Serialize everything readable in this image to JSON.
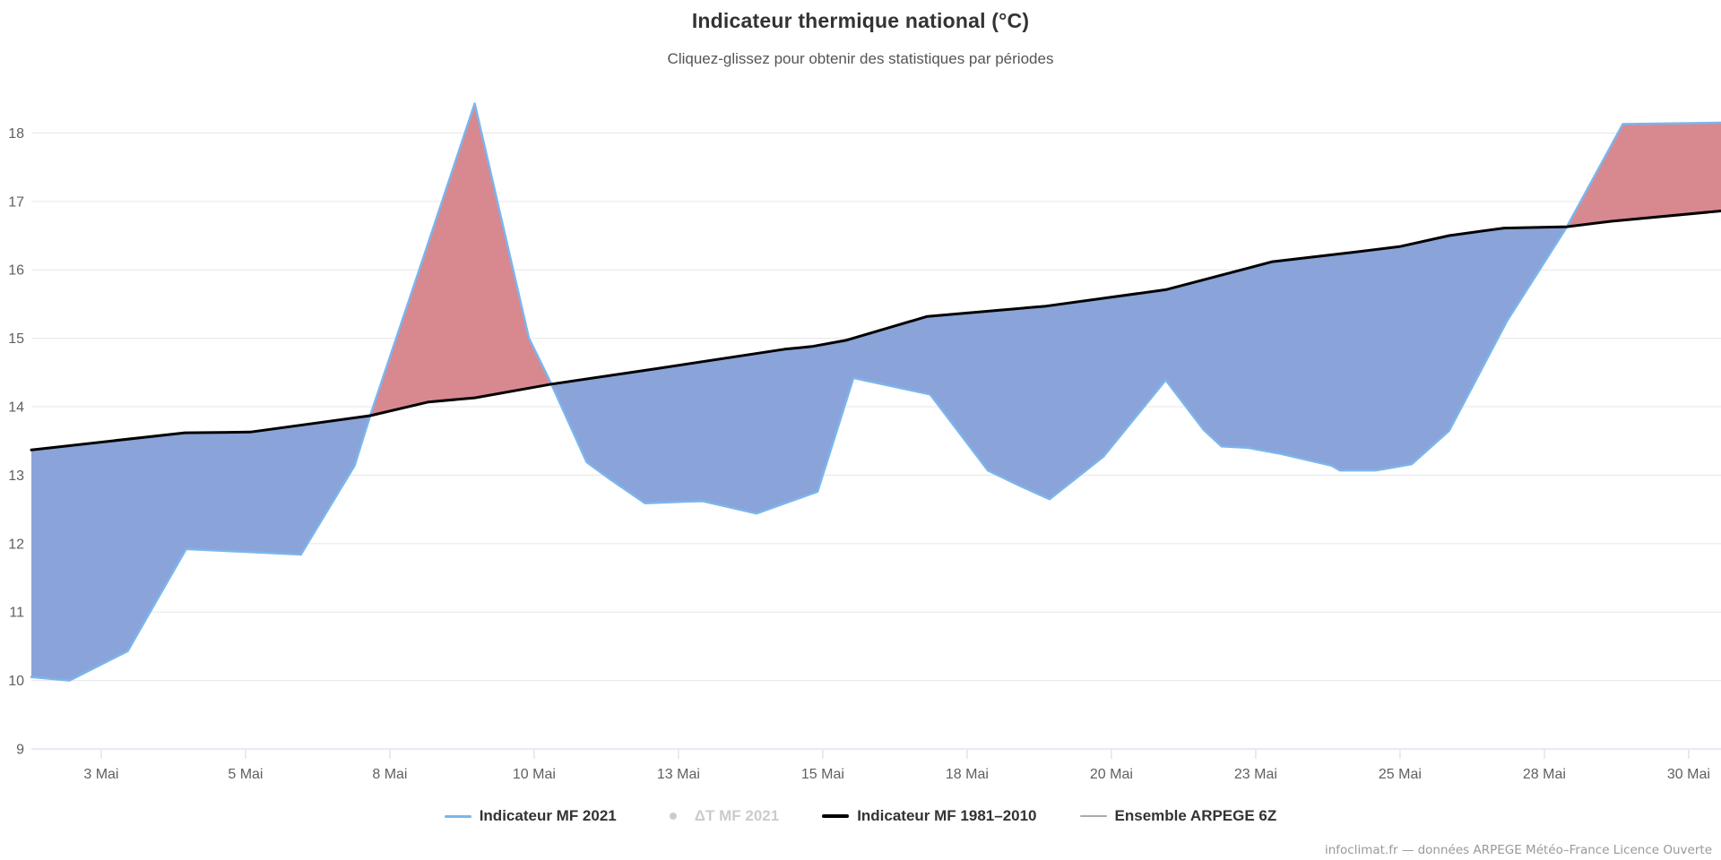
{
  "title": "Indicateur thermique national (°C)",
  "subtitle": "Cliquez-glissez pour obtenir des statistiques par périodes",
  "credits": "infoclimat.fr — données ARPEGE Météo–France Licence Ouverte",
  "legend": [
    {
      "label": "Indicateur MF 2021",
      "marker": "line",
      "color": "#7cb5ec",
      "text_color": "#333333",
      "disabled": false
    },
    {
      "label": "ΔT MF 2021",
      "marker": "dot",
      "color": "#cccccc",
      "text_color": "#cccccc",
      "disabled": true
    },
    {
      "label": "Indicateur MF 1981–2010",
      "marker": "line-thick",
      "color": "#000000",
      "text_color": "#333333",
      "disabled": false
    },
    {
      "label": "Ensemble ARPEGE 6Z",
      "marker": "line-thin",
      "color": "#aaaaaa",
      "text_color": "#333333",
      "disabled": false
    }
  ],
  "chart_data": {
    "type": "area",
    "title": "Indicateur thermique national (°C)",
    "subtitle": "Cliquez-glissez pour obtenir des statistiques par périodes",
    "x_unit": "jour de mai 2021",
    "xlim_days": [
      1.79,
      31.06
    ],
    "ylim": [
      9,
      18.6
    ],
    "grid": true,
    "legend_position": "bottom",
    "y_ticks": [
      9,
      10,
      11,
      12,
      13,
      14,
      15,
      16,
      17,
      18
    ],
    "x_ticks": [
      {
        "day": 3.0,
        "label": "3 Mai"
      },
      {
        "day": 5.5,
        "label": "5 Mai"
      },
      {
        "day": 8.0,
        "label": "8 Mai"
      },
      {
        "day": 10.5,
        "label": "10 Mai"
      },
      {
        "day": 13.0,
        "label": "13 Mai"
      },
      {
        "day": 15.5,
        "label": "15 Mai"
      },
      {
        "day": 18.0,
        "label": "18 Mai"
      },
      {
        "day": 20.5,
        "label": "20 Mai"
      },
      {
        "day": 23.0,
        "label": "23 Mai"
      },
      {
        "day": 25.5,
        "label": "25 Mai"
      },
      {
        "day": 28.0,
        "label": "28 Mai"
      },
      {
        "day": 30.5,
        "label": "30 Mai"
      }
    ],
    "fills": {
      "above_color": "#d8888f",
      "below_color": "#8aa3d8"
    },
    "axis_color": "#ccd6eb",
    "grid_color": "#e6e6e6",
    "series": [
      {
        "name": "Indicateur MF 2021",
        "color": "#7cb5ec",
        "width": 2.5,
        "points": [
          [
            1.79,
            10.05
          ],
          [
            2.45,
            10.0
          ],
          [
            3.46,
            10.43
          ],
          [
            4.47,
            11.92
          ],
          [
            5.5,
            11.88
          ],
          [
            6.46,
            11.84
          ],
          [
            7.39,
            13.14
          ],
          [
            7.66,
            13.87
          ],
          [
            8.55,
            16.1
          ],
          [
            9.47,
            18.43
          ],
          [
            10.41,
            15.0
          ],
          [
            10.8,
            14.33
          ],
          [
            11.41,
            13.19
          ],
          [
            11.8,
            12.95
          ],
          [
            12.42,
            12.59
          ],
          [
            13.0,
            12.61
          ],
          [
            13.42,
            12.62
          ],
          [
            14.35,
            12.44
          ],
          [
            15.41,
            12.76
          ],
          [
            16.03,
            14.42
          ],
          [
            17.36,
            14.18
          ],
          [
            18.36,
            13.07
          ],
          [
            18.9,
            12.85
          ],
          [
            19.43,
            12.65
          ],
          [
            20.36,
            13.27
          ],
          [
            21.44,
            14.39
          ],
          [
            22.1,
            13.66
          ],
          [
            22.41,
            13.42
          ],
          [
            22.87,
            13.4
          ],
          [
            23.44,
            13.31
          ],
          [
            24.31,
            13.14
          ],
          [
            24.46,
            13.07
          ],
          [
            25.08,
            13.07
          ],
          [
            25.7,
            13.16
          ],
          [
            26.35,
            13.65
          ],
          [
            27.35,
            15.25
          ],
          [
            28.39,
            16.63
          ],
          [
            29.36,
            18.13
          ],
          [
            31.06,
            18.15
          ]
        ]
      },
      {
        "name": "Indicateur MF 1981–2010",
        "color": "#000000",
        "width": 3,
        "points": [
          [
            1.79,
            13.37
          ],
          [
            4.45,
            13.62
          ],
          [
            5.58,
            13.63
          ],
          [
            7.66,
            13.87
          ],
          [
            8.67,
            14.07
          ],
          [
            9.47,
            14.13
          ],
          [
            10.8,
            14.33
          ],
          [
            12.57,
            14.55
          ],
          [
            14.84,
            14.84
          ],
          [
            15.31,
            14.88
          ],
          [
            15.9,
            14.97
          ],
          [
            17.31,
            15.32
          ],
          [
            19.37,
            15.47
          ],
          [
            21.44,
            15.71
          ],
          [
            23.29,
            16.12
          ],
          [
            24.72,
            16.26
          ],
          [
            25.49,
            16.34
          ],
          [
            26.35,
            16.5
          ],
          [
            27.3,
            16.61
          ],
          [
            28.39,
            16.63
          ],
          [
            29.16,
            16.71
          ],
          [
            31.06,
            16.86
          ]
        ]
      }
    ]
  }
}
